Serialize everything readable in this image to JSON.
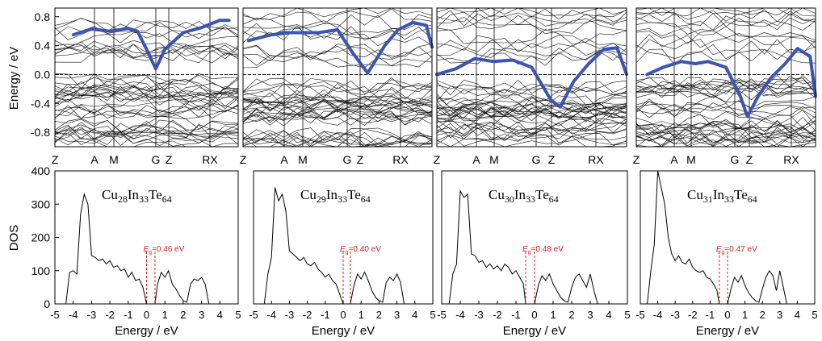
{
  "band_axis": {
    "ylabel": "Energy / eV",
    "yticks": [
      0.8,
      0.4,
      0.0,
      -0.4,
      -0.8
    ],
    "ylim": [
      -1.0,
      0.92
    ],
    "kpoint_labels": [
      "Z",
      "A",
      "M",
      "G",
      "Z",
      "RX"
    ]
  },
  "dos_axis": {
    "ylabel": "DOS",
    "xlabel": "Energy / eV",
    "xticks": [
      -5,
      -4,
      -3,
      -2,
      -1,
      0,
      1,
      2,
      3,
      4,
      5
    ],
    "yticks": [
      0,
      100,
      200,
      300,
      400
    ],
    "xlim": [
      -5,
      5
    ],
    "ylim": [
      0,
      400
    ]
  },
  "chart_data": [
    {
      "type": "line",
      "panel": "band-1",
      "ylabel": "Energy / eV",
      "ylim": [
        -1.0,
        0.92
      ],
      "highlighted_band_color": "#3b55b0",
      "highlighted_band": {
        "x": [
          0.1,
          0.2,
          0.3,
          0.4,
          0.45,
          0.5,
          0.55,
          0.6,
          0.7,
          0.8,
          0.9,
          0.95
        ],
        "y": [
          0.55,
          0.63,
          0.6,
          0.64,
          0.6,
          0.35,
          0.08,
          0.35,
          0.58,
          0.65,
          0.75,
          0.75
        ]
      }
    },
    {
      "type": "line",
      "panel": "band-2",
      "highlighted_band_color": "#3b55b0",
      "highlighted_band": {
        "x": [
          0.03,
          0.15,
          0.25,
          0.4,
          0.5,
          0.58,
          0.66,
          0.75,
          0.82,
          0.9,
          0.97,
          1.0
        ],
        "y": [
          0.47,
          0.55,
          0.58,
          0.58,
          0.62,
          0.3,
          0.02,
          0.4,
          0.62,
          0.72,
          0.68,
          0.38
        ]
      }
    },
    {
      "type": "line",
      "panel": "band-3",
      "highlighted_band_color": "#3b55b0",
      "highlighted_band": {
        "x": [
          0.0,
          0.1,
          0.2,
          0.3,
          0.4,
          0.5,
          0.6,
          0.65,
          0.72,
          0.8,
          0.88,
          0.95,
          1.0
        ],
        "y": [
          0.0,
          0.08,
          0.22,
          0.18,
          0.2,
          0.1,
          -0.35,
          -0.45,
          -0.1,
          0.15,
          0.35,
          0.37,
          0.0
        ]
      }
    },
    {
      "type": "line",
      "panel": "band-4",
      "highlighted_band_color": "#3b55b0",
      "highlighted_band": {
        "x": [
          0.06,
          0.15,
          0.25,
          0.33,
          0.4,
          0.5,
          0.58,
          0.62,
          0.68,
          0.75,
          0.83,
          0.9,
          0.97,
          1.0
        ],
        "y": [
          0.0,
          0.1,
          0.18,
          0.15,
          0.18,
          0.1,
          -0.3,
          -0.58,
          -0.3,
          -0.05,
          0.15,
          0.36,
          0.25,
          -0.3
        ]
      }
    },
    {
      "type": "line",
      "panel": "dos-1",
      "formula": [
        "Cu",
        "28",
        "In",
        "33",
        "Te",
        "64"
      ],
      "gap_label": "=0.46 eV",
      "gap_symbol": "E",
      "gap_subscript": "g",
      "gap_edges": [
        0.0,
        0.46
      ],
      "xlabel": "Energy / eV",
      "ylabel": "DOS",
      "xlim": [
        -5,
        5
      ],
      "ylim": [
        0,
        400
      ],
      "x": [
        -4.4,
        -4.2,
        -4.0,
        -3.8,
        -3.6,
        -3.4,
        -3.2,
        -3.0,
        -2.8,
        -2.6,
        -2.4,
        -2.2,
        -2.0,
        -1.8,
        -1.6,
        -1.4,
        -1.2,
        -1.0,
        -0.8,
        -0.6,
        -0.4,
        -0.2,
        0.0,
        0.46,
        0.6,
        0.8,
        1.0,
        1.2,
        1.4,
        1.6,
        1.8,
        2.0,
        2.2,
        2.4,
        2.6,
        2.8,
        3.0,
        3.2,
        3.4,
        3.6
      ],
      "y": [
        0,
        95,
        100,
        90,
        270,
        330,
        300,
        145,
        140,
        130,
        135,
        120,
        130,
        110,
        115,
        100,
        105,
        80,
        95,
        70,
        75,
        50,
        0,
        0,
        60,
        95,
        80,
        100,
        60,
        45,
        25,
        10,
        5,
        60,
        75,
        70,
        80,
        60,
        0,
        0
      ]
    },
    {
      "type": "line",
      "panel": "dos-2",
      "formula": [
        "Cu",
        "29",
        "In",
        "33",
        "Te",
        "64"
      ],
      "gap_label": "=0.40 eV",
      "gap_symbol": "E",
      "gap_subscript": "g",
      "gap_edges": [
        0.0,
        0.4
      ],
      "x": [
        -4.4,
        -4.2,
        -4.0,
        -3.8,
        -3.6,
        -3.4,
        -3.2,
        -3.0,
        -2.8,
        -2.6,
        -2.4,
        -2.2,
        -2.0,
        -1.8,
        -1.6,
        -1.4,
        -1.2,
        -1.0,
        -0.8,
        -0.6,
        -0.4,
        -0.2,
        0.0,
        0.4,
        0.6,
        0.8,
        1.0,
        1.2,
        1.4,
        1.6,
        1.8,
        2.0,
        2.2,
        2.4,
        2.6,
        2.8,
        3.0,
        3.2,
        3.4,
        3.6
      ],
      "y": [
        0,
        90,
        140,
        350,
        310,
        330,
        280,
        160,
        150,
        140,
        130,
        140,
        120,
        115,
        125,
        105,
        95,
        80,
        90,
        70,
        60,
        30,
        0,
        0,
        55,
        90,
        75,
        95,
        70,
        40,
        20,
        10,
        5,
        65,
        80,
        70,
        90,
        65,
        0,
        0
      ]
    },
    {
      "type": "line",
      "panel": "dos-3",
      "formula": [
        "Cu",
        "30",
        "In",
        "33",
        "Te",
        "64"
      ],
      "gap_label": "=0.48 eV",
      "gap_symbol": "E",
      "gap_subscript": "g",
      "gap_edges": [
        -0.48,
        0.0
      ],
      "x": [
        -4.6,
        -4.4,
        -4.2,
        -4.0,
        -3.8,
        -3.6,
        -3.4,
        -3.2,
        -3.0,
        -2.8,
        -2.6,
        -2.4,
        -2.2,
        -2.0,
        -1.8,
        -1.6,
        -1.4,
        -1.2,
        -1.0,
        -0.8,
        -0.6,
        -0.48,
        0.0,
        0.2,
        0.4,
        0.6,
        0.8,
        1.0,
        1.2,
        1.4,
        1.6,
        1.8,
        2.0,
        2.2,
        2.4,
        2.6,
        2.8,
        3.0,
        3.2,
        3.4
      ],
      "y": [
        0,
        90,
        120,
        340,
        320,
        330,
        150,
        145,
        125,
        130,
        110,
        120,
        105,
        115,
        100,
        120,
        110,
        90,
        100,
        80,
        60,
        0,
        0,
        55,
        85,
        70,
        90,
        60,
        40,
        20,
        10,
        5,
        50,
        80,
        90,
        70,
        50,
        90,
        40,
        0
      ]
    },
    {
      "type": "line",
      "panel": "dos-4",
      "formula": [
        "Cu",
        "31",
        "In",
        "33",
        "Te",
        "64"
      ],
      "gap_label": "=0.47 eV",
      "gap_symbol": "E",
      "gap_subscript": "g",
      "gap_edges": [
        -0.47,
        0.0
      ],
      "x": [
        -4.6,
        -4.4,
        -4.2,
        -4.0,
        -3.8,
        -3.6,
        -3.4,
        -3.2,
        -3.0,
        -2.8,
        -2.6,
        -2.4,
        -2.2,
        -2.0,
        -1.8,
        -1.6,
        -1.4,
        -1.2,
        -1.0,
        -0.8,
        -0.6,
        -0.47,
        0.0,
        0.2,
        0.4,
        0.6,
        0.8,
        1.0,
        1.2,
        1.4,
        1.6,
        1.8,
        2.0,
        2.2,
        2.4,
        2.6,
        2.8,
        3.0,
        3.2,
        3.4
      ],
      "y": [
        0,
        100,
        180,
        400,
        350,
        300,
        200,
        150,
        130,
        145,
        125,
        120,
        135,
        110,
        100,
        95,
        100,
        80,
        75,
        60,
        40,
        0,
        0,
        45,
        80,
        65,
        85,
        55,
        35,
        20,
        10,
        5,
        45,
        80,
        100,
        85,
        40,
        100,
        50,
        0
      ]
    }
  ]
}
